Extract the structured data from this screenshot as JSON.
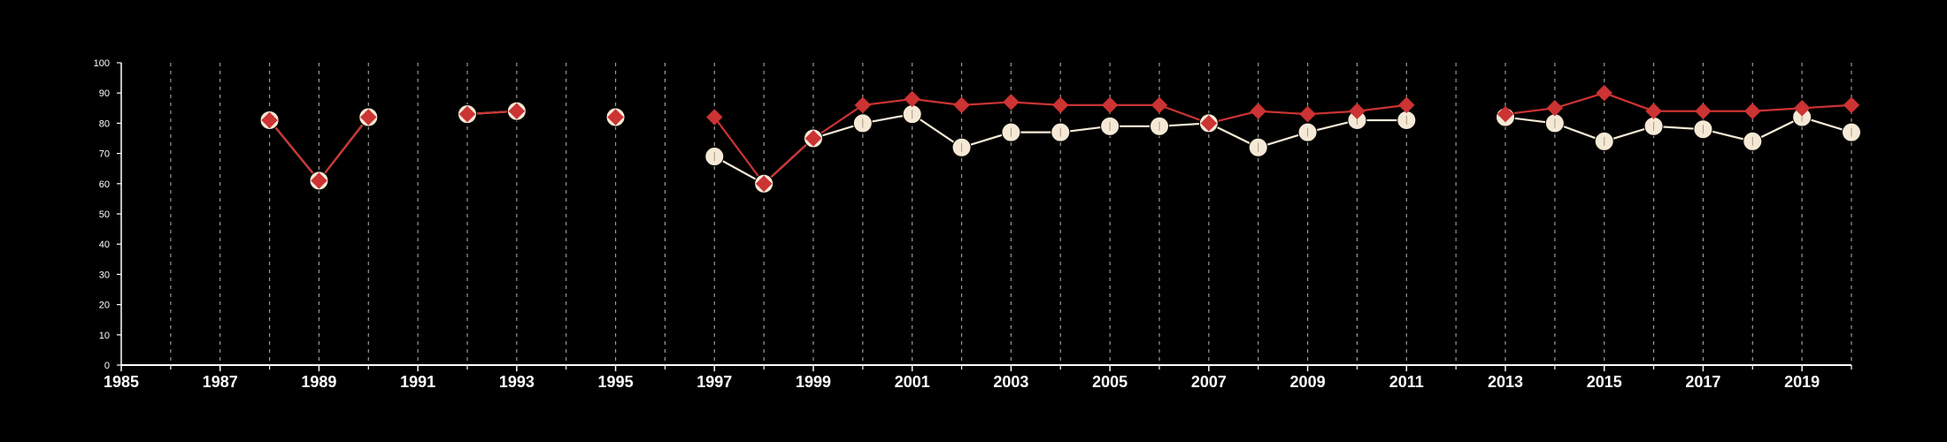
{
  "chart_data": {
    "type": "line",
    "title": "",
    "xlabel": "",
    "ylabel": "",
    "xlim": [
      1985,
      2020
    ],
    "ylim": [
      0,
      100
    ],
    "y_ticks": [
      "0",
      "10",
      "20",
      "30",
      "40",
      "50",
      "60",
      "70",
      "80",
      "90",
      "100"
    ],
    "x_tick_labels": [
      "1985",
      "1987",
      "1989",
      "1991",
      "1993",
      "1995",
      "1997",
      "1999",
      "2001",
      "2003",
      "2005",
      "2007",
      "2009",
      "2011",
      "2013",
      "2015",
      "2017",
      "2019"
    ],
    "minor_x_ticks": [
      1986,
      1988,
      1990,
      1992,
      1994,
      1996,
      1998,
      2000,
      2002,
      2004,
      2006,
      2008,
      2010,
      2012,
      2014,
      2016,
      2018,
      2020
    ],
    "grid": "vertical dashed at every year",
    "series": [
      {
        "marker": "circle",
        "color": "#f5e9d6",
        "points": [
          [
            1988,
            81
          ],
          [
            1989,
            61
          ],
          [
            1990,
            82
          ],
          [
            1992,
            83
          ],
          [
            1993,
            84
          ],
          [
            1995,
            82
          ],
          [
            1997,
            69
          ],
          [
            1998,
            60
          ],
          [
            1999,
            75
          ],
          [
            2000,
            80
          ],
          [
            2001,
            83
          ],
          [
            2002,
            72
          ],
          [
            2003,
            77
          ],
          [
            2004,
            77
          ],
          [
            2005,
            79
          ],
          [
            2006,
            79
          ],
          [
            2007,
            80
          ],
          [
            2008,
            72
          ],
          [
            2009,
            77
          ],
          [
            2010,
            81
          ],
          [
            2011,
            81
          ],
          [
            2013,
            82
          ],
          [
            2014,
            80
          ],
          [
            2015,
            74
          ],
          [
            2016,
            79
          ],
          [
            2017,
            78
          ],
          [
            2018,
            74
          ],
          [
            2019,
            82
          ],
          [
            2020,
            77
          ]
        ]
      },
      {
        "marker": "diamond",
        "color": "#cc3333",
        "points": [
          [
            1988,
            81
          ],
          [
            1989,
            61
          ],
          [
            1990,
            82
          ],
          [
            1992,
            83
          ],
          [
            1993,
            84
          ],
          [
            1995,
            82
          ],
          [
            1997,
            82
          ],
          [
            1998,
            60
          ],
          [
            1999,
            75
          ],
          [
            2000,
            86
          ],
          [
            2001,
            88
          ],
          [
            2002,
            86
          ],
          [
            2003,
            87
          ],
          [
            2004,
            86
          ],
          [
            2005,
            86
          ],
          [
            2006,
            86
          ],
          [
            2007,
            80
          ],
          [
            2008,
            84
          ],
          [
            2009,
            83
          ],
          [
            2010,
            84
          ],
          [
            2011,
            86
          ],
          [
            2013,
            83
          ],
          [
            2014,
            85
          ],
          [
            2015,
            90
          ],
          [
            2016,
            84
          ],
          [
            2017,
            84
          ],
          [
            2018,
            84
          ],
          [
            2019,
            85
          ],
          [
            2020,
            86
          ]
        ]
      }
    ]
  }
}
